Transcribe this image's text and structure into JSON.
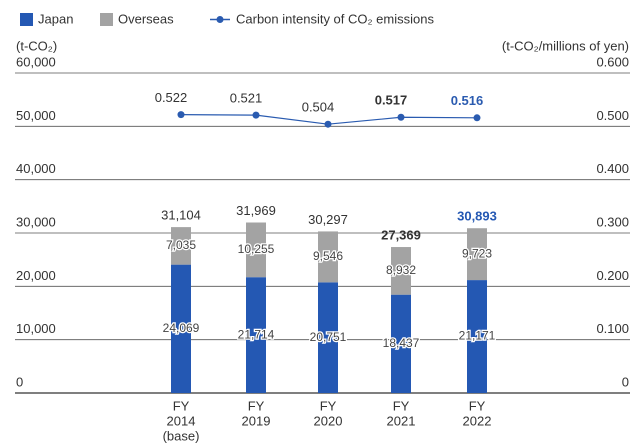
{
  "chart_data": {
    "type": "bar",
    "y_label": "(t-CO₂)",
    "y2_label": "(t-CO₂/millions of yen)",
    "categories": [
      [
        "FY",
        "2014",
        "(base)"
      ],
      [
        "FY",
        "2019"
      ],
      [
        "FY",
        "2020"
      ],
      [
        "FY",
        "2021"
      ],
      [
        "FY",
        "2022"
      ]
    ],
    "series": [
      {
        "name": "Japan",
        "color": "#2458b3",
        "values": [
          24069,
          21714,
          20751,
          18437,
          21171
        ],
        "value_labels": [
          "24,069",
          "21,714",
          "20,751",
          "18,437",
          "21,171"
        ]
      },
      {
        "name": "Overseas",
        "color": "#a3a3a3",
        "values": [
          7035,
          10255,
          9546,
          8932,
          9723
        ],
        "value_labels": [
          "7,035",
          "10,255",
          "9,546",
          "8,932",
          "9,723"
        ]
      },
      {
        "name": "Carbon intensity of CO₂ emissions",
        "color": "#2a5bb0",
        "type": "line",
        "axis": "y2",
        "values": [
          0.522,
          0.521,
          0.504,
          0.517,
          0.516
        ]
      }
    ],
    "totals": [
      31104,
      31969,
      30297,
      27369,
      30893
    ],
    "total_labels": [
      "31,104",
      "31,969",
      "30,297",
      "27,369",
      "30,893"
    ],
    "ylim": [
      0,
      60000
    ],
    "yticks": [
      0,
      {
        "value": 10000,
        "label": "10,000"
      },
      {
        "value": 20000,
        "label": "20,000"
      },
      {
        "value": 30000,
        "label": "30,000"
      },
      {
        "value": 40000,
        "label": "40,000"
      },
      {
        "value": 50000,
        "label": "50,000"
      },
      {
        "value": 60000,
        "label": "60,000"
      }
    ],
    "y2lim": [
      0,
      0.6
    ],
    "y2ticks": [
      0,
      {
        "value": 0.1,
        "label": "0.100"
      },
      {
        "value": 0.2,
        "label": "0.200"
      },
      {
        "value": 0.3,
        "label": "0.300"
      },
      {
        "value": 0.4,
        "label": "0.400"
      },
      {
        "value": 0.5,
        "label": "0.500"
      },
      {
        "value": 0.6,
        "label": "0.600"
      }
    ],
    "grid": true,
    "legend": "top-left"
  }
}
